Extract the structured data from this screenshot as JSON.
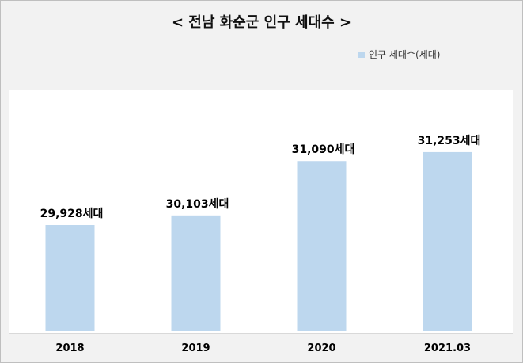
{
  "chart_data": {
    "type": "bar",
    "title": "< 전남 화순군 인구 세대수 >",
    "legend_position": "top-right",
    "grid": false,
    "xlabel": "",
    "ylabel": "",
    "categories": [
      "2018",
      "2019",
      "2020",
      "2021.03"
    ],
    "series": [
      {
        "name": "인구 세대수(세대)",
        "values": [
          29928,
          30103,
          31090,
          31253
        ],
        "labels": [
          "29,928세대",
          "30,103세대",
          "31,090세대",
          "31,253세대"
        ]
      }
    ],
    "ylim": [
      28000,
      32000
    ],
    "colors": {
      "bar": "#bdd7ee"
    }
  }
}
